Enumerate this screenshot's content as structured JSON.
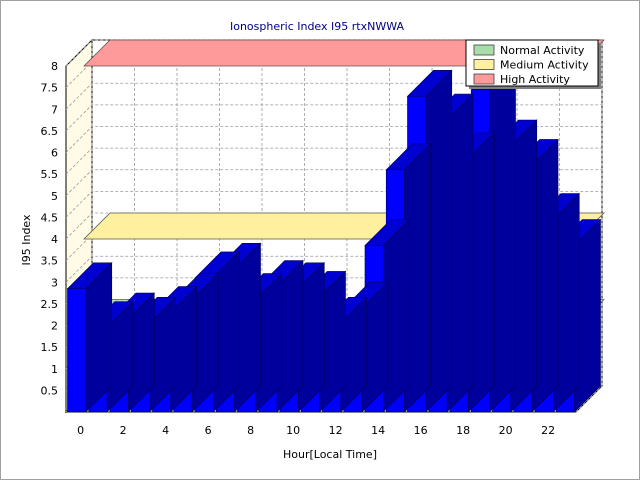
{
  "chart_data": {
    "type": "bar",
    "title": "Ionospheric Index I95 rtxNWWA",
    "xlabel": "Hour[Local Time]",
    "ylabel": "I95 Index",
    "x_ticks": [
      "0",
      "2",
      "4",
      "6",
      "8",
      "10",
      "12",
      "14",
      "16",
      "18",
      "20",
      "22"
    ],
    "y_ticks": [
      "0.5",
      "1",
      "1.5",
      "2",
      "2.5",
      "3",
      "3.5",
      "4",
      "4.5",
      "5",
      "5.5",
      "6",
      "6.5",
      "7",
      "7.5",
      "8"
    ],
    "ylim": [
      0,
      8
    ],
    "grid": true,
    "legend_position": "top-right",
    "hours": [
      0,
      1,
      2,
      3,
      4,
      5,
      6,
      7,
      8,
      9,
      10,
      11,
      12,
      13,
      14,
      15,
      16,
      17,
      18,
      19,
      20,
      21,
      22,
      23
    ],
    "values": [
      2.85,
      1.95,
      2.15,
      2.05,
      2.3,
      2.6,
      3.1,
      3.3,
      2.6,
      2.9,
      2.85,
      2.65,
      2.05,
      2.4,
      3.85,
      5.6,
      7.3,
      6.75,
      5.85,
      7.45,
      6.15,
      5.7,
      4.45,
      3.85
    ],
    "bar_color": "#0000ff",
    "activity_bands": [
      {
        "name": "Normal Activity",
        "level": 2,
        "color": "#a8dca8"
      },
      {
        "name": "Medium Activity",
        "level": 4,
        "color": "#fff0a0"
      },
      {
        "name": "High Activity",
        "level": 8,
        "color": "#ff9a9a"
      }
    ]
  }
}
